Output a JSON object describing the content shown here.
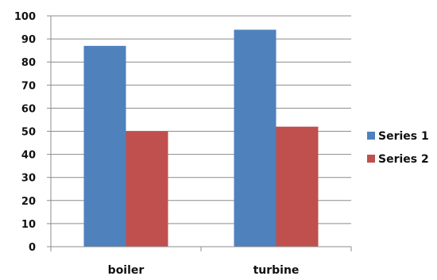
{
  "chart_data": {
    "type": "bar",
    "categories": [
      "boiler",
      "turbine"
    ],
    "series": [
      {
        "name": "Series 1",
        "values": [
          87,
          94
        ],
        "color": "#4f81bd"
      },
      {
        "name": "Series 2",
        "values": [
          50,
          52
        ],
        "color": "#c0504d"
      }
    ],
    "ylim": [
      0,
      100
    ],
    "yticks": [
      0,
      10,
      20,
      30,
      40,
      50,
      60,
      70,
      80,
      90,
      100
    ],
    "grid": true,
    "legend_position": "right"
  }
}
